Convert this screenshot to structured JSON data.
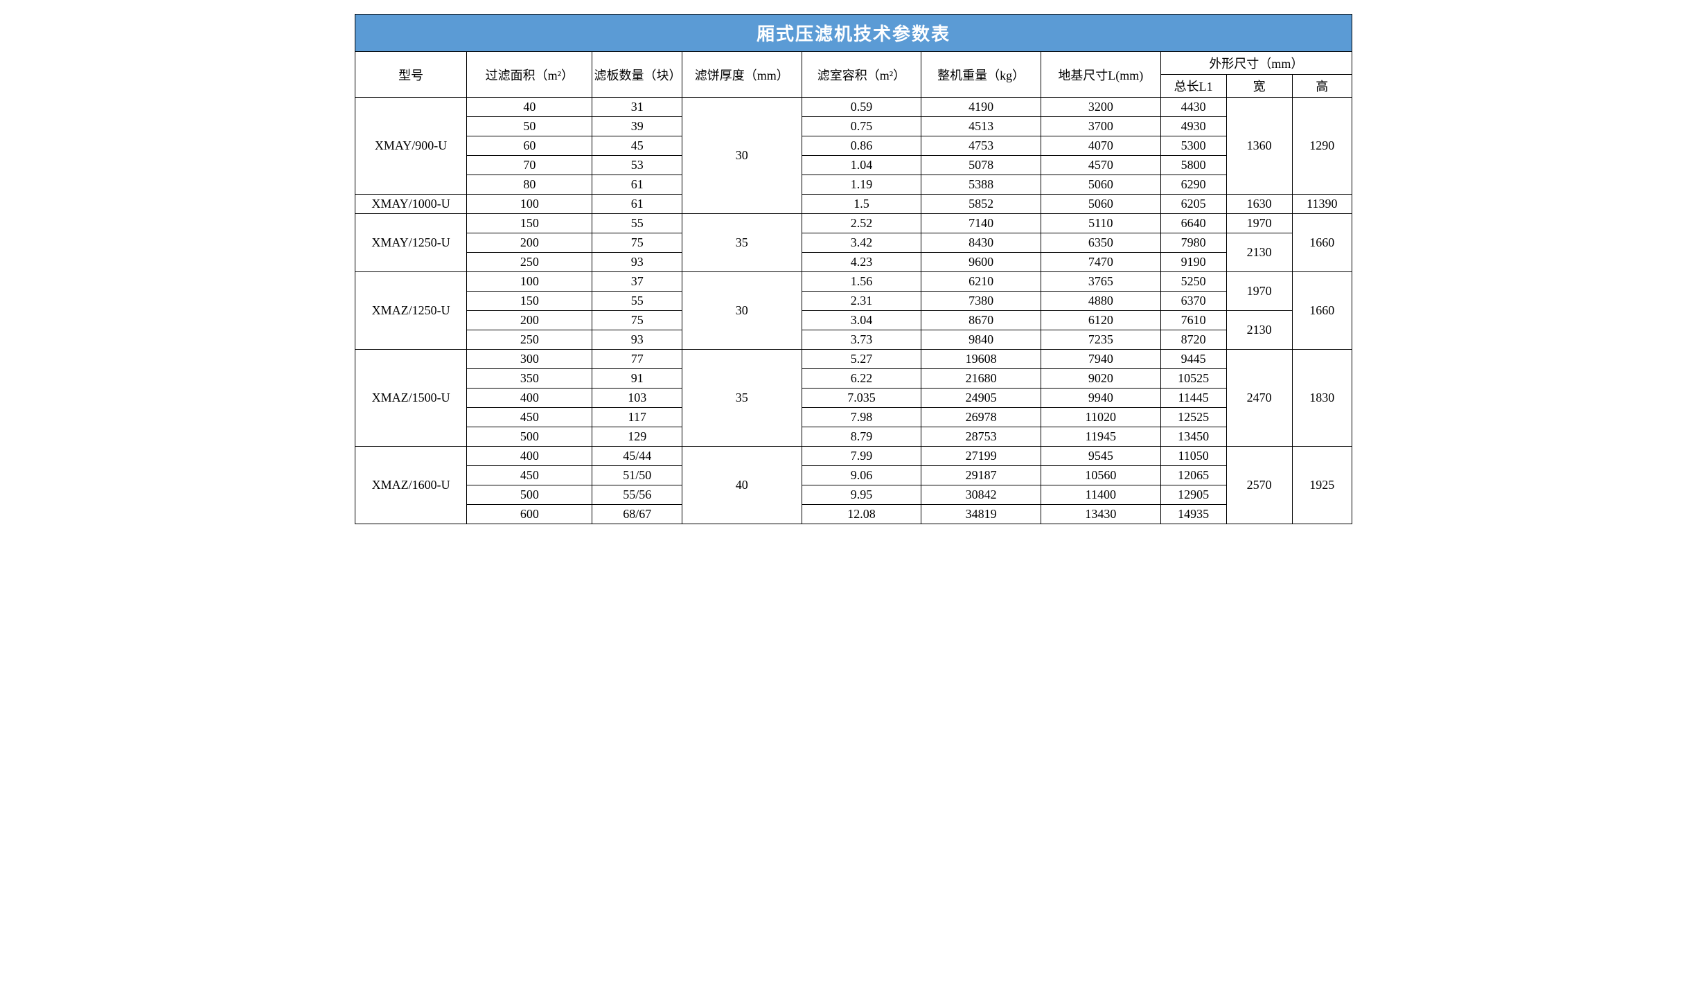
{
  "title": "厢式压滤机技术参数表",
  "headers": {
    "model": "型号",
    "area": "过滤面积（m²）",
    "plate": "滤板数量（块）",
    "thick": "滤饼厚度（mm）",
    "vol": "滤室容积（m²）",
    "weight": "整机重量（kg）",
    "found": "地基尺寸L(mm)",
    "dims": "外形尺寸（mm）",
    "l1": "总长L1",
    "w": "宽",
    "h": "高"
  },
  "groups": [
    {
      "model": "XMAY/900-U",
      "thick": "30",
      "width": "1360",
      "height": "1290",
      "thick_span": 6,
      "width_span": 5,
      "height_span": 5,
      "rows": [
        {
          "area": "40",
          "plate": "31",
          "vol": "0.59",
          "weight": "4190",
          "found": "3200",
          "l1": "4430"
        },
        {
          "area": "50",
          "plate": "39",
          "vol": "0.75",
          "weight": "4513",
          "found": "3700",
          "l1": "4930"
        },
        {
          "area": "60",
          "plate": "45",
          "vol": "0.86",
          "weight": "4753",
          "found": "4070",
          "l1": "5300"
        },
        {
          "area": "70",
          "plate": "53",
          "vol": "1.04",
          "weight": "5078",
          "found": "4570",
          "l1": "5800"
        },
        {
          "area": "80",
          "plate": "61",
          "vol": "1.19",
          "weight": "5388",
          "found": "5060",
          "l1": "6290"
        }
      ]
    },
    {
      "model": "XMAY/1000-U",
      "width": "1630",
      "height": "11390",
      "width_span": 1,
      "height_span": 1,
      "rows": [
        {
          "area": "100",
          "plate": "61",
          "vol": "1.5",
          "weight": "5852",
          "found": "5060",
          "l1": "6205"
        }
      ]
    },
    {
      "model": "XMAY/1250-U",
      "thick": "35",
      "height": "1660",
      "thick_span": 3,
      "height_span": 3,
      "width_slots": [
        {
          "value": "1970",
          "span": 1
        },
        {
          "value": "2130",
          "span": 2
        }
      ],
      "rows": [
        {
          "area": "150",
          "plate": "55",
          "vol": "2.52",
          "weight": "7140",
          "found": "5110",
          "l1": "6640"
        },
        {
          "area": "200",
          "plate": "75",
          "vol": "3.42",
          "weight": "8430",
          "found": "6350",
          "l1": "7980"
        },
        {
          "area": "250",
          "plate": "93",
          "vol": "4.23",
          "weight": "9600",
          "found": "7470",
          "l1": "9190"
        }
      ]
    },
    {
      "model": "XMAZ/1250-U",
      "thick": "30",
      "height": "1660",
      "thick_span": 4,
      "height_span": 4,
      "width_slots": [
        {
          "value": "1970",
          "span": 2
        },
        {
          "value": "2130",
          "span": 2
        }
      ],
      "rows": [
        {
          "area": "100",
          "plate": "37",
          "vol": "1.56",
          "weight": "6210",
          "found": "3765",
          "l1": "5250"
        },
        {
          "area": "150",
          "plate": "55",
          "vol": "2.31",
          "weight": "7380",
          "found": "4880",
          "l1": "6370"
        },
        {
          "area": "200",
          "plate": "75",
          "vol": "3.04",
          "weight": "8670",
          "found": "6120",
          "l1": "7610"
        },
        {
          "area": "250",
          "plate": "93",
          "vol": "3.73",
          "weight": "9840",
          "found": "7235",
          "l1": "8720"
        }
      ]
    },
    {
      "model": "XMAZ/1500-U",
      "thick": "35",
      "width": "2470",
      "height": "1830",
      "thick_span": 5,
      "width_span": 5,
      "height_span": 5,
      "rows": [
        {
          "area": "300",
          "plate": "77",
          "vol": "5.27",
          "weight": "19608",
          "found": "7940",
          "l1": "9445"
        },
        {
          "area": "350",
          "plate": "91",
          "vol": "6.22",
          "weight": "21680",
          "found": "9020",
          "l1": "10525"
        },
        {
          "area": "400",
          "plate": "103",
          "vol": "7.035",
          "weight": "24905",
          "found": "9940",
          "l1": "11445"
        },
        {
          "area": "450",
          "plate": "117",
          "vol": "7.98",
          "weight": "26978",
          "found": "11020",
          "l1": "12525"
        },
        {
          "area": "500",
          "plate": "129",
          "vol": "8.79",
          "weight": "28753",
          "found": "11945",
          "l1": "13450"
        }
      ]
    },
    {
      "model": "XMAZ/1600-U",
      "thick": "40",
      "width": "2570",
      "height": "1925",
      "thick_span": 4,
      "width_span": 4,
      "height_span": 4,
      "rows": [
        {
          "area": "400",
          "plate": "45/44",
          "vol": "7.99",
          "weight": "27199",
          "found": "9545",
          "l1": "11050"
        },
        {
          "area": "450",
          "plate": "51/50",
          "vol": "9.06",
          "weight": "29187",
          "found": "10560",
          "l1": "12065"
        },
        {
          "area": "500",
          "plate": "55/56",
          "vol": "9.95",
          "weight": "30842",
          "found": "11400",
          "l1": "12905"
        },
        {
          "area": "600",
          "plate": "68/67",
          "vol": "12.08",
          "weight": "34819",
          "found": "13430",
          "l1": "14935"
        }
      ]
    }
  ],
  "style": {
    "title_bg": "#5b9bd5",
    "title_fg": "#ffffff",
    "border_color": "#000000",
    "font_family": "SimSun",
    "title_fontsize": 26,
    "cell_fontsize": 18
  }
}
